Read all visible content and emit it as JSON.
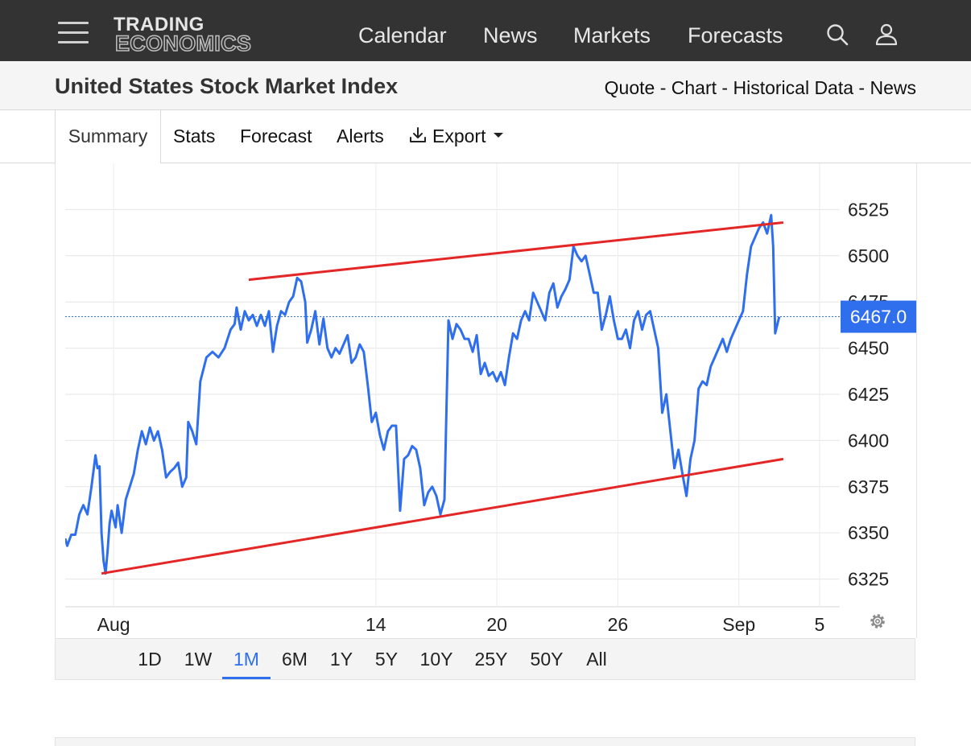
{
  "header": {
    "logo_line1": "TRADING",
    "logo_line2": "ECONOMICS",
    "nav": [
      "Calendar",
      "News",
      "Markets",
      "Forecasts"
    ],
    "icons": {
      "menu": "hamburger-menu-icon",
      "search": "search-icon",
      "user": "user-icon"
    }
  },
  "subheader": {
    "title": "United States Stock Market Index",
    "links": [
      "Quote",
      "Chart",
      "Historical Data",
      "News"
    ],
    "separator": " - "
  },
  "tabs": {
    "summary": "Summary",
    "stats": "Stats",
    "forecast": "Forecast",
    "alerts": "Alerts",
    "export": "Export",
    "active": "Summary"
  },
  "range_buttons": [
    "1D",
    "1W",
    "1M",
    "6M",
    "1Y",
    "5Y",
    "10Y",
    "25Y",
    "50Y",
    "All"
  ],
  "active_range": "1M",
  "colors": {
    "series": "#2f6fed",
    "trendline": "#e32626",
    "badge": "#2f6fed",
    "header": "#333333"
  },
  "chart_data": {
    "type": "line",
    "y_ticks": [
      6325,
      6350,
      6375,
      6400,
      6425,
      6450,
      6475,
      6500,
      6525
    ],
    "x_ticks": [
      {
        "x": 0,
        "label": "Aug"
      },
      {
        "x": 13,
        "label": "14"
      },
      {
        "x": 19,
        "label": "20"
      },
      {
        "x": 25,
        "label": "26"
      },
      {
        "x": 31,
        "label": "Sep"
      },
      {
        "x": 35,
        "label": "5"
      }
    ],
    "ylim": [
      6310,
      6550
    ],
    "xlim": [
      -2.4,
      36.0
    ],
    "last_value": "6467.0",
    "last": 6467,
    "grid": true,
    "series": [
      {
        "points": [
          [
            -2.4,
            6347
          ],
          [
            -2.3,
            6343
          ],
          [
            -2.1,
            6349
          ],
          [
            -1.9,
            6349
          ],
          [
            -1.7,
            6360
          ],
          [
            -1.5,
            6365
          ],
          [
            -1.3,
            6360
          ],
          [
            -1.1,
            6375
          ],
          [
            -0.9,
            6392
          ],
          [
            -0.8,
            6385
          ],
          [
            -0.7,
            6386
          ],
          [
            -0.6,
            6350
          ],
          [
            -0.5,
            6335
          ],
          [
            -0.4,
            6328
          ],
          [
            -0.3,
            6340
          ],
          [
            -0.2,
            6355
          ],
          [
            -0.1,
            6362
          ],
          [
            0.1,
            6353
          ],
          [
            0.2,
            6365
          ],
          [
            0.4,
            6350
          ],
          [
            0.6,
            6368
          ],
          [
            0.8,
            6375
          ],
          [
            1.0,
            6382
          ],
          [
            1.2,
            6395
          ],
          [
            1.4,
            6405
          ],
          [
            1.6,
            6398
          ],
          [
            1.8,
            6407
          ],
          [
            2.0,
            6400
          ],
          [
            2.2,
            6405
          ],
          [
            2.4,
            6395
          ],
          [
            2.6,
            6380
          ],
          [
            2.8,
            6383
          ],
          [
            3.0,
            6385
          ],
          [
            3.2,
            6388
          ],
          [
            3.4,
            6375
          ],
          [
            3.6,
            6380
          ],
          [
            3.7,
            6410
          ],
          [
            3.9,
            6405
          ],
          [
            4.1,
            6398
          ],
          [
            4.3,
            6432
          ],
          [
            4.6,
            6445
          ],
          [
            4.9,
            6448
          ],
          [
            5.2,
            6445
          ],
          [
            5.5,
            6450
          ],
          [
            5.8,
            6460
          ],
          [
            6.0,
            6463
          ],
          [
            6.1,
            6472
          ],
          [
            6.3,
            6460
          ],
          [
            6.5,
            6470
          ],
          [
            6.7,
            6465
          ],
          [
            6.9,
            6468
          ],
          [
            7.1,
            6462
          ],
          [
            7.3,
            6468
          ],
          [
            7.5,
            6462
          ],
          [
            7.7,
            6470
          ],
          [
            7.9,
            6448
          ],
          [
            8.1,
            6462
          ],
          [
            8.3,
            6470
          ],
          [
            8.5,
            6468
          ],
          [
            8.7,
            6475
          ],
          [
            8.9,
            6478
          ],
          [
            9.1,
            6488
          ],
          [
            9.3,
            6486
          ],
          [
            9.5,
            6475
          ],
          [
            9.6,
            6453
          ],
          [
            9.8,
            6460
          ],
          [
            10.0,
            6470
          ],
          [
            10.2,
            6452
          ],
          [
            10.4,
            6466
          ],
          [
            10.6,
            6450
          ],
          [
            10.8,
            6445
          ],
          [
            11.0,
            6450
          ],
          [
            11.2,
            6447
          ],
          [
            11.4,
            6452
          ],
          [
            11.6,
            6457
          ],
          [
            11.8,
            6442
          ],
          [
            12.0,
            6445
          ],
          [
            12.2,
            6452
          ],
          [
            12.4,
            6448
          ],
          [
            12.6,
            6430
          ],
          [
            12.8,
            6410
          ],
          [
            13.0,
            6415
          ],
          [
            13.2,
            6403
          ],
          [
            13.4,
            6395
          ],
          [
            13.6,
            6405
          ],
          [
            13.8,
            6408
          ],
          [
            14.0,
            6408
          ],
          [
            14.2,
            6362
          ],
          [
            14.4,
            6390
          ],
          [
            14.6,
            6392
          ],
          [
            14.8,
            6397
          ],
          [
            15.0,
            6395
          ],
          [
            15.2,
            6385
          ],
          [
            15.4,
            6365
          ],
          [
            15.6,
            6372
          ],
          [
            15.8,
            6375
          ],
          [
            16.0,
            6370
          ],
          [
            16.2,
            6360
          ],
          [
            16.4,
            6368
          ],
          [
            16.6,
            6465
          ],
          [
            16.8,
            6455
          ],
          [
            17.0,
            6463
          ],
          [
            17.2,
            6460
          ],
          [
            17.4,
            6455
          ],
          [
            17.6,
            6455
          ],
          [
            17.8,
            6448
          ],
          [
            18.0,
            6457
          ],
          [
            18.2,
            6436
          ],
          [
            18.4,
            6442
          ],
          [
            18.6,
            6435
          ],
          [
            18.8,
            6437
          ],
          [
            19.0,
            6432
          ],
          [
            19.2,
            6437
          ],
          [
            19.4,
            6430
          ],
          [
            19.6,
            6445
          ],
          [
            19.8,
            6458
          ],
          [
            20.0,
            6455
          ],
          [
            20.2,
            6465
          ],
          [
            20.4,
            6470
          ],
          [
            20.6,
            6465
          ],
          [
            20.8,
            6480
          ],
          [
            21.0,
            6475
          ],
          [
            21.2,
            6470
          ],
          [
            21.4,
            6465
          ],
          [
            21.6,
            6480
          ],
          [
            21.8,
            6485
          ],
          [
            22.0,
            6472
          ],
          [
            22.2,
            6478
          ],
          [
            22.4,
            6482
          ],
          [
            22.6,
            6487
          ],
          [
            22.8,
            6505
          ],
          [
            23.0,
            6500
          ],
          [
            23.2,
            6497
          ],
          [
            23.4,
            6500
          ],
          [
            23.6,
            6490
          ],
          [
            23.8,
            6480
          ],
          [
            24.0,
            6480
          ],
          [
            24.2,
            6460
          ],
          [
            24.4,
            6468
          ],
          [
            24.6,
            6478
          ],
          [
            24.8,
            6465
          ],
          [
            25.0,
            6455
          ],
          [
            25.2,
            6455
          ],
          [
            25.4,
            6460
          ],
          [
            25.6,
            6450
          ],
          [
            25.8,
            6465
          ],
          [
            26.0,
            6470
          ],
          [
            26.2,
            6460
          ],
          [
            26.4,
            6468
          ],
          [
            26.6,
            6470
          ],
          [
            26.8,
            6460
          ],
          [
            27.0,
            6450
          ],
          [
            27.2,
            6415
          ],
          [
            27.4,
            6425
          ],
          [
            27.6,
            6405
          ],
          [
            27.8,
            6385
          ],
          [
            28.0,
            6395
          ],
          [
            28.2,
            6382
          ],
          [
            28.4,
            6370
          ],
          [
            28.6,
            6390
          ],
          [
            28.8,
            6400
          ],
          [
            29.0,
            6428
          ],
          [
            29.2,
            6432
          ],
          [
            29.4,
            6430
          ],
          [
            29.6,
            6440
          ],
          [
            29.8,
            6445
          ],
          [
            30.0,
            6450
          ],
          [
            30.2,
            6455
          ],
          [
            30.4,
            6448
          ],
          [
            30.6,
            6455
          ],
          [
            30.8,
            6460
          ],
          [
            31.0,
            6465
          ],
          [
            31.2,
            6470
          ],
          [
            31.4,
            6490
          ],
          [
            31.6,
            6505
          ],
          [
            31.8,
            6510
          ],
          [
            32.0,
            6515
          ],
          [
            32.2,
            6518
          ],
          [
            32.4,
            6512
          ],
          [
            32.6,
            6522
          ],
          [
            32.7,
            6505
          ],
          [
            32.8,
            6458
          ],
          [
            33.0,
            6467
          ]
        ]
      }
    ],
    "trendlines": [
      {
        "from": [
          -0.6,
          6328
        ],
        "to": [
          33.2,
          6390
        ]
      },
      {
        "from": [
          6.7,
          6487
        ],
        "to": [
          33.2,
          6518
        ]
      }
    ]
  }
}
